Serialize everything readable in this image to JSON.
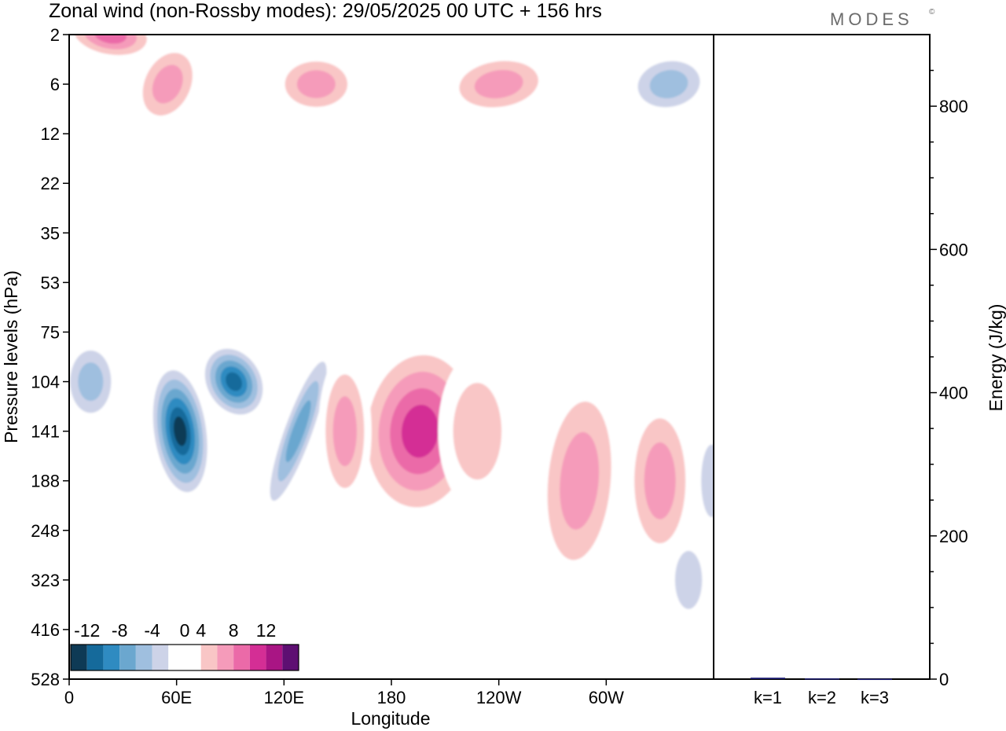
{
  "title": "Zonal wind (non-Rossby modes):  29/05/2025  00 UTC  + 156 hrs",
  "logo": "MODES",
  "logo_mark": "©",
  "chart_data": [
    {
      "type": "heatmap",
      "title": "Zonal wind (non-Rossby modes):  29/05/2025  00 UTC  + 156 hrs",
      "xlabel": "Longitude",
      "ylabel": "Pressure levels (hPa)",
      "x_ticks": [
        "0",
        "60E",
        "120E",
        "180",
        "120W",
        "60W"
      ],
      "x_tick_values": [
        0,
        60,
        120,
        180,
        240,
        300
      ],
      "xlim": [
        0,
        360
      ],
      "y_ticks": [
        "2",
        "6",
        "12",
        "22",
        "35",
        "53",
        "75",
        "104",
        "141",
        "188",
        "248",
        "323",
        "416",
        "528"
      ],
      "colorbar": {
        "labels": [
          "-12",
          "-8",
          "-4",
          "0",
          "4",
          "8",
          "12"
        ],
        "levels": [
          -14,
          -12,
          -10,
          -8,
          -6,
          -4,
          -2,
          2,
          4,
          6,
          8,
          10,
          12,
          14
        ],
        "colors": [
          "#0e3a55",
          "#156a9b",
          "#2f8bc1",
          "#6ba7cf",
          "#9fbfdf",
          "#cdd3e8",
          "#ffffff",
          "#ffffff",
          "#f9c6c6",
          "#f59bba",
          "#eb6aa8",
          "#d42e95",
          "#a91584",
          "#5e0f72"
        ]
      },
      "features": [
        {
          "sign": "negative",
          "lon": 62,
          "level": "141",
          "value": -14
        },
        {
          "sign": "negative",
          "lon": 92,
          "level": "104",
          "value": -12
        },
        {
          "sign": "negative",
          "lon": 128,
          "level": "141",
          "value": -9
        },
        {
          "sign": "negative",
          "lon": 12,
          "level": "104",
          "value": -6
        },
        {
          "sign": "negative",
          "lon": 346,
          "level": "323",
          "value": -5
        },
        {
          "sign": "negative",
          "lon": 359,
          "level": "188",
          "value": -5
        },
        {
          "sign": "positive",
          "lon": 196,
          "level": "141",
          "value": 11
        },
        {
          "sign": "positive",
          "lon": 285,
          "level": "188",
          "value": 7
        },
        {
          "sign": "positive",
          "lon": 330,
          "level": "188",
          "value": 6
        },
        {
          "sign": "positive",
          "lon": 154,
          "level": "141",
          "value": 6
        },
        {
          "sign": "positive",
          "lon": 228,
          "level": "141",
          "value": 5
        },
        {
          "sign": "positive",
          "lon": 23,
          "level": "2",
          "value": 9
        },
        {
          "sign": "positive",
          "lon": 55,
          "level": "6",
          "value": 7
        },
        {
          "sign": "positive",
          "lon": 138,
          "level": "6",
          "value": 6
        },
        {
          "sign": "positive",
          "lon": 240,
          "level": "6",
          "value": 6
        },
        {
          "sign": "negative",
          "lon": 335,
          "level": "6",
          "value": -6
        }
      ]
    },
    {
      "type": "bar",
      "categories": [
        "k=1",
        "k=2",
        "k=3"
      ],
      "values": [
        2,
        1,
        0.5
      ],
      "ylabel": "Energy (J/kg)",
      "ylim": [
        0,
        900
      ],
      "y_ticks": [
        "0",
        "200",
        "400",
        "600",
        "800"
      ],
      "y_tick_values": [
        0,
        200,
        400,
        600,
        800
      ],
      "bar_color": "#1a1a6e"
    }
  ]
}
